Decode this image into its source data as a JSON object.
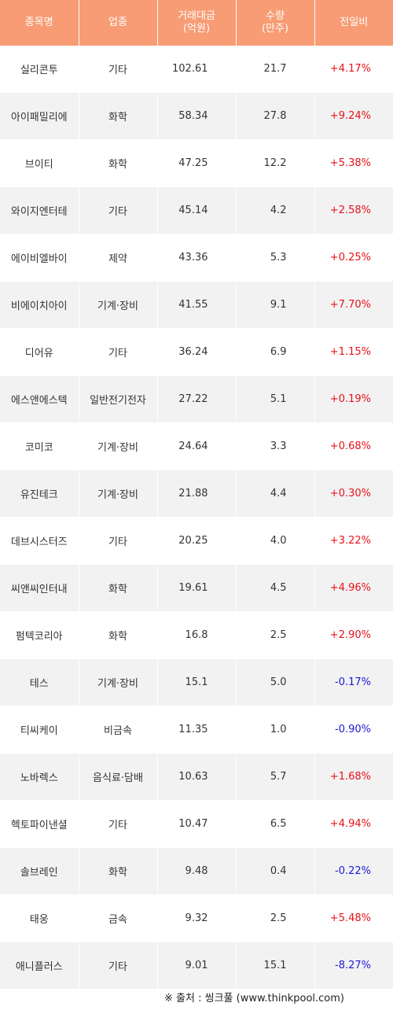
{
  "header": [
    "종목명",
    "업종",
    "거래대금\n(억원)",
    "수량\n(만주)",
    "전일비"
  ],
  "header_lines": {
    "c1": [
      "종목명"
    ],
    "c2": [
      "업종"
    ],
    "c3": [
      "거래대금",
      "(억원)"
    ],
    "c4": [
      "수량",
      "(만주)"
    ],
    "c5": [
      "전일비"
    ]
  },
  "colors": {
    "header_bg": "#f79c74",
    "up": "#e8111a",
    "down": "#1a1ad6",
    "row_alt": "#f2f2f2"
  },
  "rows": [
    {
      "name": "실리콘투",
      "sector": "기타",
      "amount": "102.61",
      "volume": "21.7",
      "change": "+4.17%",
      "dir": "up"
    },
    {
      "name": "아이패밀리에",
      "sector": "화학",
      "amount": "58.34",
      "volume": "27.8",
      "change": "+9.24%",
      "dir": "up"
    },
    {
      "name": "브이티",
      "sector": "화학",
      "amount": "47.25",
      "volume": "12.2",
      "change": "+5.38%",
      "dir": "up"
    },
    {
      "name": "와이지엔터테",
      "sector": "기타",
      "amount": "45.14",
      "volume": "4.2",
      "change": "+2.58%",
      "dir": "up"
    },
    {
      "name": "에이비엘바이",
      "sector": "제약",
      "amount": "43.36",
      "volume": "5.3",
      "change": "+0.25%",
      "dir": "up"
    },
    {
      "name": "비에이치아이",
      "sector": "기계·장비",
      "amount": "41.55",
      "volume": "9.1",
      "change": "+7.70%",
      "dir": "up"
    },
    {
      "name": "디어유",
      "sector": "기타",
      "amount": "36.24",
      "volume": "6.9",
      "change": "+1.15%",
      "dir": "up"
    },
    {
      "name": "에스앤에스텍",
      "sector": "일반전기전자",
      "amount": "27.22",
      "volume": "5.1",
      "change": "+0.19%",
      "dir": "up"
    },
    {
      "name": "코미코",
      "sector": "기계·장비",
      "amount": "24.64",
      "volume": "3.3",
      "change": "+0.68%",
      "dir": "up"
    },
    {
      "name": "유진테크",
      "sector": "기계·장비",
      "amount": "21.88",
      "volume": "4.4",
      "change": "+0.30%",
      "dir": "up"
    },
    {
      "name": "데브시스터즈",
      "sector": "기타",
      "amount": "20.25",
      "volume": "4.0",
      "change": "+3.22%",
      "dir": "up"
    },
    {
      "name": "씨앤씨인터내",
      "sector": "화학",
      "amount": "19.61",
      "volume": "4.5",
      "change": "+4.96%",
      "dir": "up"
    },
    {
      "name": "펌텍코리아",
      "sector": "화학",
      "amount": "16.8",
      "volume": "2.5",
      "change": "+2.90%",
      "dir": "up"
    },
    {
      "name": "테스",
      "sector": "기계·장비",
      "amount": "15.1",
      "volume": "5.0",
      "change": "-0.17%",
      "dir": "down"
    },
    {
      "name": "티씨케이",
      "sector": "비금속",
      "amount": "11.35",
      "volume": "1.0",
      "change": "-0.90%",
      "dir": "down"
    },
    {
      "name": "노바렉스",
      "sector": "음식료·담배",
      "amount": "10.63",
      "volume": "5.7",
      "change": "+1.68%",
      "dir": "up"
    },
    {
      "name": "헥토파이낸셜",
      "sector": "기타",
      "amount": "10.47",
      "volume": "6.5",
      "change": "+4.94%",
      "dir": "up"
    },
    {
      "name": "솔브레인",
      "sector": "화학",
      "amount": "9.48",
      "volume": "0.4",
      "change": "-0.22%",
      "dir": "down"
    },
    {
      "name": "태웅",
      "sector": "금속",
      "amount": "9.32",
      "volume": "2.5",
      "change": "+5.48%",
      "dir": "up"
    },
    {
      "name": "애니플러스",
      "sector": "기타",
      "amount": "9.01",
      "volume": "15.1",
      "change": "-8.27%",
      "dir": "down"
    }
  ],
  "source": "※ 출처 : 씽크풀 (www.thinkpool.com)"
}
